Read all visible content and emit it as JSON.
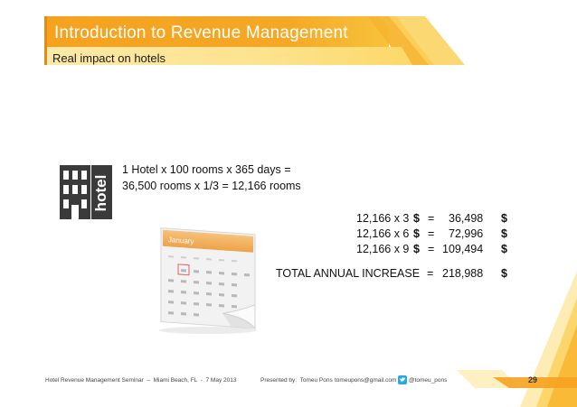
{
  "header": {
    "title": "Introduction to Revenue Management",
    "subtitle": "Real impact on hotels"
  },
  "logo": {
    "text": "hotel"
  },
  "calculation": {
    "line1": "1 Hotel x 100 rooms x 365 days =",
    "line2": "36,500 rooms x 1/3 = 12,166 rooms"
  },
  "results": [
    {
      "expr": "12,166 x 3",
      "currency": "$",
      "eq": "=",
      "value": "36,498",
      "unit": "$"
    },
    {
      "expr": "12,166 x 6",
      "currency": "$",
      "eq": "=",
      "value": "72,996",
      "unit": "$"
    },
    {
      "expr": "12,166 x 9",
      "currency": "$",
      "eq": "=",
      "value": "109,494",
      "unit": "$"
    }
  ],
  "total": {
    "label": "TOTAL ANNUAL INCREASE",
    "eq": "=",
    "value": "218,988",
    "unit": "$"
  },
  "calendar": {
    "month": "January"
  },
  "footer": {
    "seminar": "Hotel Revenue Management Seminar  –  Miami Beach, FL  -  7 May 2013",
    "presenter": "Presented by:  Tomeu Pons",
    "email": "tomeupons@gmail.com",
    "twitter": "@tomeu_pons",
    "page": "29"
  },
  "colors": {
    "accent": "#f0a020",
    "accent_light": "#fbd36a",
    "accent_dark": "#e8891a",
    "text": "#111111"
  }
}
